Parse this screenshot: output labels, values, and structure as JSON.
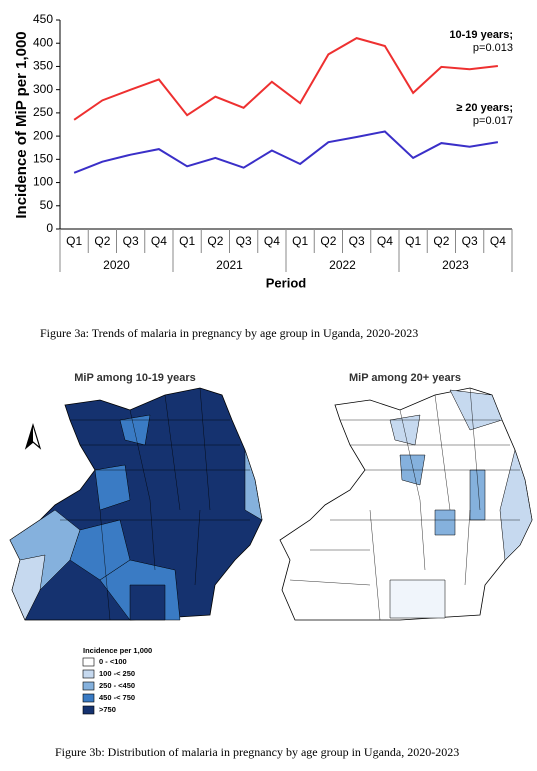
{
  "chart_data": {
    "type": "line",
    "y_label": "Incidence of MiP per 1,000",
    "x_label": "Period",
    "categories": [
      "Q1",
      "Q2",
      "Q3",
      "Q4",
      "Q1",
      "Q2",
      "Q3",
      "Q4",
      "Q1",
      "Q2",
      "Q3",
      "Q4",
      "Q1",
      "Q2",
      "Q3",
      "Q4"
    ],
    "x_groups": [
      "2020",
      "2021",
      "2022",
      "2023"
    ],
    "ylim": [
      0,
      450
    ],
    "yticks": [
      0,
      50,
      100,
      150,
      200,
      250,
      300,
      350,
      400,
      450
    ],
    "series": [
      {
        "name": "10-19 years;",
        "annotation": "p=0.013",
        "color": "#ee3030",
        "values": [
          235,
          277,
          300,
          322,
          245,
          285,
          261,
          317,
          271,
          376,
          411,
          394,
          293,
          349,
          344,
          351
        ]
      },
      {
        "name": "≥ 20 years;",
        "annotation": "p=0.017",
        "color": "#3a2fc8",
        "values": [
          121,
          145,
          160,
          172,
          135,
          153,
          132,
          169,
          140,
          187,
          198,
          210,
          153,
          185,
          177,
          187
        ]
      }
    ]
  },
  "figure_3a_caption": "Figure 3a: Trends of malaria in pregnancy by age group in Uganda, 2020-2023",
  "maps": {
    "left_title": "MiP among 10-19 years",
    "right_title": "MiP among 20+ years",
    "legend": {
      "title": "Incidence per 1,000",
      "items": [
        {
          "label": "0 - <100",
          "color": "#ffffff"
        },
        {
          "label": "100 -< 250",
          "color": "#c6d9ef"
        },
        {
          "label": "250 - <450",
          "color": "#85b1dd"
        },
        {
          "label": "450 -< 750",
          "color": "#3a7bc4"
        },
        {
          "label": ">750",
          "color": "#15326f"
        }
      ]
    }
  },
  "figure_3b_caption": "Figure 3b: Distribution of malaria in pregnancy by age group in Uganda, 2020-2023"
}
